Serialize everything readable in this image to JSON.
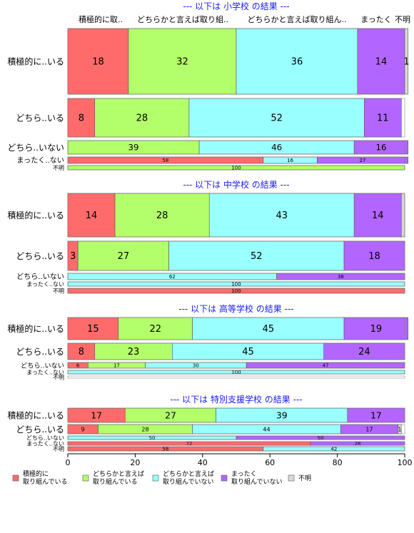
{
  "chart_data": {
    "type": "bar",
    "orientation": "horizontal-stacked",
    "xlim": [
      0,
      100
    ],
    "x_ticks": [
      "0",
      "20",
      "40",
      "60",
      "80",
      "100"
    ],
    "column_headers": [
      "積極的に取..",
      "どちらかと言えば取り組..",
      "どちらかと言えば取り組ん..",
      "まったく",
      "不明"
    ],
    "legend_position": "bottom",
    "series": [
      {
        "name": "積極的に\n取り組んでいる",
        "color": "#FF6B6B"
      },
      {
        "name": "どちらかと言えば\n取り組んでいる",
        "color": "#B3FF6B"
      },
      {
        "name": "どちらかと言えば\n取り組んでいない",
        "color": "#99FFFF"
      },
      {
        "name": "まったく\n取り組んでいない",
        "color": "#B266FF"
      },
      {
        "name": "不明",
        "color": "#D9D9D9"
      }
    ],
    "panels": [
      {
        "title": "--- 以下は 小学校 の結果 ---",
        "rows": [
          {
            "label": "積極的に..いる",
            "values": [
              18,
              32,
              36,
              14,
              1
            ],
            "labels": [
              "18",
              "32",
              "36",
              "14",
              "1"
            ]
          },
          {
            "label": "どちら..いる",
            "values": [
              8,
              28,
              52,
              11,
              0
            ],
            "labels": [
              "8",
              "28",
              "52",
              "11",
              ""
            ]
          },
          {
            "label": "どちら..いない",
            "values": [
              0,
              39,
              46,
              16,
              0
            ],
            "labels": [
              "",
              "39",
              "46",
              "16",
              ""
            ]
          },
          {
            "label": "まったく..ない",
            "values": [
              58,
              0,
              16,
              27,
              0
            ],
            "labels": [
              "58",
              "",
              "16",
              "27",
              ""
            ]
          },
          {
            "label": "不明",
            "values": [
              0,
              100,
              0,
              0,
              0
            ],
            "labels": [
              "",
              "100",
              "",
              "",
              ""
            ]
          }
        ]
      },
      {
        "title": "--- 以下は 中学校 の結果 ---",
        "rows": [
          {
            "label": "積極的に..いる",
            "values": [
              14,
              28,
              43,
              14,
              1
            ],
            "labels": [
              "14",
              "28",
              "43",
              "14",
              ""
            ]
          },
          {
            "label": "どちら..いる",
            "values": [
              3,
              27,
              52,
              18,
              0
            ],
            "labels": [
              "3",
              "27",
              "52",
              "18",
              ""
            ]
          },
          {
            "label": "どちら..いない",
            "values": [
              0,
              0,
              62,
              38,
              0
            ],
            "labels": [
              "",
              "",
              "62",
              "38",
              ""
            ]
          },
          {
            "label": "まったく..ない",
            "values": [
              0,
              0,
              100,
              0,
              0
            ],
            "labels": [
              "",
              "",
              "100",
              "",
              ""
            ]
          },
          {
            "label": "不明",
            "values": [
              100,
              0,
              0,
              0,
              0
            ],
            "labels": [
              "100",
              "",
              "",
              "",
              ""
            ]
          }
        ]
      },
      {
        "title": "--- 以下は 高等学校 の結果 ---",
        "rows": [
          {
            "label": "積極的に..いる",
            "values": [
              15,
              22,
              45,
              19,
              0
            ],
            "labels": [
              "15",
              "22",
              "45",
              "19",
              ""
            ]
          },
          {
            "label": "どちら..いる",
            "values": [
              8,
              23,
              45,
              24,
              0
            ],
            "labels": [
              "8",
              "23",
              "45",
              "24",
              ""
            ]
          },
          {
            "label": "どちら..いない",
            "values": [
              6,
              17,
              30,
              47,
              0
            ],
            "labels": [
              "6",
              "17",
              "30",
              "47",
              ""
            ]
          },
          {
            "label": "まったく..ない",
            "values": [
              0,
              0,
              100,
              0,
              0
            ],
            "labels": [
              "",
              "",
              "100",
              "",
              ""
            ]
          },
          {
            "label": "不明",
            "values": [
              0,
              0,
              0,
              0,
              0
            ],
            "labels": [
              "",
              "",
              "",
              "",
              ""
            ]
          }
        ]
      },
      {
        "title": "--- 以下は 特別支援学校 の結果 ---",
        "rows": [
          {
            "label": "積極的に..いる",
            "values": [
              17,
              27,
              39,
              17,
              0
            ],
            "labels": [
              "17",
              "27",
              "39",
              "17",
              ""
            ]
          },
          {
            "label": "どちら..いる",
            "values": [
              9,
              28,
              44,
              17,
              1
            ],
            "labels": [
              "9",
              "28",
              "44",
              "17",
              "1"
            ]
          },
          {
            "label": "どちら..いない",
            "values": [
              0,
              0,
              50,
              50,
              0
            ],
            "labels": [
              "",
              "",
              "50",
              "50",
              ""
            ]
          },
          {
            "label": "まったく..ない",
            "values": [
              72,
              0,
              0,
              28,
              0
            ],
            "labels": [
              "72",
              "",
              "",
              "28",
              ""
            ]
          },
          {
            "label": "不明",
            "values": [
              58,
              0,
              42,
              0,
              0
            ],
            "labels": [
              "58",
              "",
              "42",
              "",
              ""
            ]
          }
        ]
      }
    ]
  }
}
